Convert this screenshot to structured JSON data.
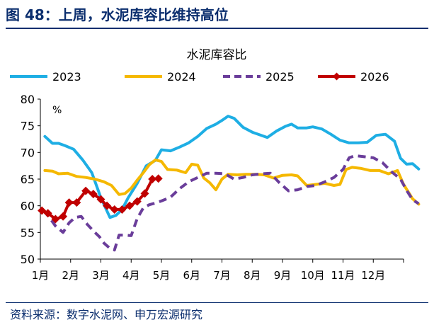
{
  "figure": {
    "title": "图 48：上周，水泥库容比维持高位",
    "source": "资料来源：数字水泥网、申万宏源研究"
  },
  "colors": {
    "title": "#0b2e6e",
    "2023": "#1eaee4",
    "2024": "#f5b800",
    "2025": "#6a3d9a",
    "2026": "#c00000",
    "axis": "#000000"
  },
  "chart_data": {
    "type": "line",
    "title": "水泥库容比",
    "unit_label": "%",
    "ylim": [
      50,
      80
    ],
    "yticks": [
      50,
      55,
      60,
      65,
      70,
      75,
      80
    ],
    "xlim": [
      1,
      13
    ],
    "xticks": [
      {
        "x": 1,
        "label": "1月"
      },
      {
        "x": 2,
        "label": "2月"
      },
      {
        "x": 3,
        "label": "3月"
      },
      {
        "x": 4,
        "label": "4月"
      },
      {
        "x": 5,
        "label": "5月"
      },
      {
        "x": 6,
        "label": "6月"
      },
      {
        "x": 7,
        "label": "7月"
      },
      {
        "x": 8,
        "label": "8月"
      },
      {
        "x": 9,
        "label": "9月"
      },
      {
        "x": 10,
        "label": "10月"
      },
      {
        "x": 11,
        "label": "11月"
      },
      {
        "x": 12,
        "label": "12月"
      }
    ],
    "grid": false,
    "legend_position": "top",
    "series": [
      {
        "name": "2023",
        "style": "solid",
        "points": [
          [
            1.15,
            73.0
          ],
          [
            1.4,
            71.7
          ],
          [
            1.6,
            71.7
          ],
          [
            1.8,
            71.3
          ],
          [
            2.1,
            70.6
          ],
          [
            2.4,
            68.6
          ],
          [
            2.7,
            66.2
          ],
          [
            3.0,
            61.5
          ],
          [
            3.3,
            57.8
          ],
          [
            3.5,
            58.2
          ],
          [
            3.7,
            59.3
          ],
          [
            3.9,
            61.5
          ],
          [
            4.2,
            64.2
          ],
          [
            4.5,
            67.5
          ],
          [
            4.8,
            68.5
          ],
          [
            5.0,
            70.5
          ],
          [
            5.3,
            70.3
          ],
          [
            5.6,
            71.0
          ],
          [
            5.9,
            71.8
          ],
          [
            6.2,
            73.0
          ],
          [
            6.5,
            74.5
          ],
          [
            6.8,
            75.3
          ],
          [
            7.0,
            76.0
          ],
          [
            7.2,
            76.8
          ],
          [
            7.4,
            76.4
          ],
          [
            7.7,
            74.7
          ],
          [
            8.0,
            73.8
          ],
          [
            8.3,
            73.2
          ],
          [
            8.5,
            72.8
          ],
          [
            8.8,
            74.0
          ],
          [
            9.1,
            74.9
          ],
          [
            9.3,
            75.3
          ],
          [
            9.5,
            74.6
          ],
          [
            9.8,
            74.6
          ],
          [
            10.0,
            74.8
          ],
          [
            10.3,
            74.4
          ],
          [
            10.6,
            73.4
          ],
          [
            10.9,
            72.3
          ],
          [
            11.2,
            71.8
          ],
          [
            11.5,
            71.8
          ],
          [
            11.8,
            71.9
          ],
          [
            12.1,
            73.2
          ],
          [
            12.4,
            73.4
          ],
          [
            12.7,
            72.1
          ],
          [
            12.9,
            68.9
          ],
          [
            13.1,
            67.8
          ],
          [
            13.3,
            67.9
          ],
          [
            13.5,
            66.9
          ]
        ]
      },
      {
        "name": "2024",
        "style": "solid",
        "points": [
          [
            1.15,
            66.6
          ],
          [
            1.4,
            66.5
          ],
          [
            1.6,
            66.0
          ],
          [
            1.9,
            66.1
          ],
          [
            2.2,
            65.5
          ],
          [
            2.5,
            65.3
          ],
          [
            2.8,
            65.0
          ],
          [
            3.1,
            64.5
          ],
          [
            3.35,
            63.8
          ],
          [
            3.6,
            62.1
          ],
          [
            3.8,
            62.3
          ],
          [
            4.0,
            63.3
          ],
          [
            4.2,
            64.8
          ],
          [
            4.4,
            66.2
          ],
          [
            4.6,
            67.7
          ],
          [
            4.8,
            68.6
          ],
          [
            5.0,
            68.3
          ],
          [
            5.2,
            66.8
          ],
          [
            5.5,
            66.7
          ],
          [
            5.8,
            66.2
          ],
          [
            6.0,
            67.8
          ],
          [
            6.2,
            67.6
          ],
          [
            6.4,
            65.2
          ],
          [
            6.6,
            64.3
          ],
          [
            6.8,
            63.0
          ],
          [
            7.0,
            65.0
          ],
          [
            7.2,
            65.9
          ],
          [
            7.5,
            65.8
          ],
          [
            7.8,
            65.9
          ],
          [
            8.1,
            65.9
          ],
          [
            8.4,
            65.8
          ],
          [
            8.7,
            65.2
          ],
          [
            9.0,
            65.7
          ],
          [
            9.3,
            65.8
          ],
          [
            9.5,
            65.6
          ],
          [
            9.8,
            63.8
          ],
          [
            10.1,
            64.0
          ],
          [
            10.4,
            64.2
          ],
          [
            10.7,
            63.8
          ],
          [
            10.9,
            64.0
          ],
          [
            11.1,
            66.8
          ],
          [
            11.3,
            67.2
          ],
          [
            11.6,
            67.0
          ],
          [
            11.9,
            66.6
          ],
          [
            12.2,
            66.6
          ],
          [
            12.5,
            66.0
          ],
          [
            12.8,
            66.6
          ],
          [
            13.0,
            64.0
          ],
          [
            13.3,
            61.3
          ],
          [
            13.5,
            60.3
          ]
        ]
      },
      {
        "name": "2025",
        "style": "dashed",
        "points": [
          [
            1.1,
            59.1
          ],
          [
            1.3,
            57.8
          ],
          [
            1.5,
            56.2
          ],
          [
            1.75,
            55.0
          ],
          [
            1.95,
            56.8
          ],
          [
            2.15,
            57.8
          ],
          [
            2.35,
            58.0
          ],
          [
            2.55,
            56.5
          ],
          [
            2.75,
            55.3
          ],
          [
            2.95,
            54.2
          ],
          [
            3.1,
            53.0
          ],
          [
            3.3,
            52.0
          ],
          [
            3.45,
            51.7
          ],
          [
            3.6,
            54.5
          ],
          [
            3.8,
            54.5
          ],
          [
            4.0,
            54.4
          ],
          [
            4.2,
            57.6
          ],
          [
            4.4,
            59.6
          ],
          [
            4.6,
            60.2
          ],
          [
            4.8,
            60.5
          ],
          [
            5.0,
            60.9
          ],
          [
            5.3,
            61.6
          ],
          [
            5.6,
            63.2
          ],
          [
            5.9,
            64.5
          ],
          [
            6.2,
            65.3
          ],
          [
            6.5,
            66.1
          ],
          [
            6.8,
            66.1
          ],
          [
            7.1,
            66.0
          ],
          [
            7.4,
            65.0
          ],
          [
            7.7,
            65.3
          ],
          [
            8.0,
            65.8
          ],
          [
            8.3,
            66.0
          ],
          [
            8.6,
            66.1
          ],
          [
            8.9,
            64.3
          ],
          [
            9.2,
            62.8
          ],
          [
            9.5,
            63.0
          ],
          [
            9.8,
            63.6
          ],
          [
            10.1,
            63.8
          ],
          [
            10.4,
            64.5
          ],
          [
            10.7,
            65.3
          ],
          [
            11.0,
            66.8
          ],
          [
            11.2,
            69.0
          ],
          [
            11.4,
            69.4
          ],
          [
            11.7,
            69.2
          ],
          [
            12.0,
            69.0
          ],
          [
            12.3,
            68.1
          ],
          [
            12.6,
            66.4
          ],
          [
            12.9,
            65.0
          ],
          [
            13.1,
            62.9
          ],
          [
            13.3,
            61.1
          ],
          [
            13.5,
            60.4
          ]
        ]
      },
      {
        "name": "2026",
        "style": "solid-diamond",
        "points": [
          [
            1.05,
            59.1
          ],
          [
            1.25,
            58.6
          ],
          [
            1.5,
            57.5
          ],
          [
            1.75,
            58.0
          ],
          [
            1.95,
            60.6
          ],
          [
            2.2,
            60.6
          ],
          [
            2.5,
            62.8
          ],
          [
            2.75,
            62.2
          ],
          [
            3.0,
            61.2
          ],
          [
            3.2,
            60.0
          ],
          [
            3.45,
            59.3
          ],
          [
            3.7,
            59.3
          ],
          [
            3.95,
            60.0
          ],
          [
            4.2,
            60.8
          ],
          [
            4.45,
            62.3
          ],
          [
            4.7,
            65.0
          ],
          [
            4.9,
            65.1
          ]
        ]
      }
    ]
  }
}
